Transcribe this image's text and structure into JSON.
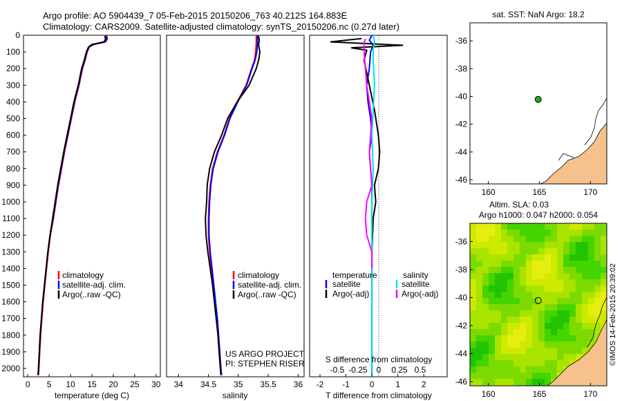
{
  "header": {
    "line1": "Argo profile: AO 5904439_7 05-Feb-2015 20150206_763 40.212S 164.883E",
    "line2": "Climatology: CARS2009. Satellite-adjusted climatology: synTS_20150206.nc (0.27d later)"
  },
  "colors": {
    "climatology": "#ff0000",
    "satellite_adj": "#0000ff",
    "argo": "#000000",
    "sal_satellite": "#00e5ee",
    "sal_argo": "#ff00ff",
    "land": "#f5c28e",
    "marker": "#22aa22"
  },
  "chart_data": [
    {
      "id": "temperature",
      "type": "line",
      "xlabel": "temperature (deg C)",
      "ylabel": "",
      "xlim": [
        -1,
        31
      ],
      "ylim": [
        2050,
        0
      ],
      "xticks": [
        0,
        5,
        10,
        15,
        20,
        25,
        30
      ],
      "yticks": [
        0,
        100,
        200,
        300,
        400,
        500,
        600,
        700,
        800,
        900,
        1000,
        1100,
        1200,
        1300,
        1400,
        1500,
        1600,
        1700,
        1800,
        1900,
        2000
      ],
      "legend": [
        "climatology",
        "satellite-adj. clim.",
        "Argo(..raw -QC)"
      ],
      "series": [
        {
          "name": "climatology",
          "color": "#ff0000",
          "points": [
            [
              18.4,
              0
            ],
            [
              18.6,
              20
            ],
            [
              18.2,
              40
            ],
            [
              15.5,
              55
            ],
            [
              14.4,
              70
            ],
            [
              13.9,
              100
            ],
            [
              13.4,
              150
            ],
            [
              12.8,
              200
            ],
            [
              12.0,
              300
            ],
            [
              11.0,
              400
            ],
            [
              10.2,
              500
            ],
            [
              9.4,
              600
            ],
            [
              8.6,
              700
            ],
            [
              7.9,
              800
            ],
            [
              7.2,
              900
            ],
            [
              6.6,
              1000
            ],
            [
              6.0,
              1100
            ],
            [
              5.3,
              1200
            ],
            [
              4.8,
              1300
            ],
            [
              4.4,
              1400
            ],
            [
              4.0,
              1500
            ],
            [
              3.6,
              1600
            ],
            [
              3.3,
              1700
            ],
            [
              3.0,
              1800
            ],
            [
              2.8,
              1900
            ],
            [
              2.6,
              2000
            ],
            [
              2.5,
              2040
            ]
          ]
        },
        {
          "name": "satellite-adj. clim.",
          "color": "#0000ff",
          "points": [
            [
              18.2,
              0
            ],
            [
              18.5,
              20
            ],
            [
              18.0,
              40
            ],
            [
              15.3,
              55
            ],
            [
              14.3,
              70
            ],
            [
              13.8,
              100
            ],
            [
              13.3,
              150
            ],
            [
              12.7,
              200
            ],
            [
              11.9,
              300
            ],
            [
              10.9,
              400
            ],
            [
              10.1,
              500
            ],
            [
              9.3,
              600
            ],
            [
              8.5,
              700
            ],
            [
              7.8,
              800
            ],
            [
              7.1,
              900
            ],
            [
              6.5,
              1000
            ],
            [
              5.9,
              1100
            ],
            [
              5.2,
              1200
            ],
            [
              4.7,
              1300
            ],
            [
              4.3,
              1400
            ],
            [
              3.9,
              1500
            ],
            [
              3.5,
              1600
            ],
            [
              3.2,
              1700
            ],
            [
              2.9,
              1800
            ],
            [
              2.7,
              1900
            ],
            [
              2.5,
              2000
            ],
            [
              2.4,
              2040
            ]
          ]
        },
        {
          "name": "Argo(..raw -QC)",
          "color": "#000000",
          "points": [
            [
              18.0,
              5
            ],
            [
              18.2,
              25
            ],
            [
              17.8,
              40
            ],
            [
              15.0,
              55
            ],
            [
              14.2,
              70
            ],
            [
              13.7,
              100
            ],
            [
              13.2,
              150
            ],
            [
              12.6,
              200
            ],
            [
              11.8,
              300
            ],
            [
              10.8,
              400
            ],
            [
              10.0,
              500
            ],
            [
              9.2,
              600
            ],
            [
              8.4,
              700
            ],
            [
              7.7,
              800
            ],
            [
              7.0,
              900
            ],
            [
              6.4,
              1000
            ],
            [
              5.8,
              1100
            ],
            [
              5.2,
              1200
            ],
            [
              4.7,
              1300
            ],
            [
              4.3,
              1400
            ],
            [
              3.9,
              1500
            ],
            [
              3.5,
              1600
            ],
            [
              3.2,
              1700
            ],
            [
              2.9,
              1800
            ],
            [
              2.7,
              1900
            ],
            [
              2.5,
              2000
            ],
            [
              2.4,
              2040
            ]
          ]
        }
      ]
    },
    {
      "id": "salinity",
      "type": "line",
      "xlabel": "salinity",
      "ylabel": "",
      "xlim": [
        33.8,
        36.1
      ],
      "ylim": [
        2050,
        0
      ],
      "xticks": [
        34,
        34.5,
        35,
        35.5,
        36
      ],
      "legend": [
        "climatology",
        "satellite-adj. clim.",
        "Argo(..raw -QC)"
      ],
      "annotation": [
        "US ARGO PROJECT",
        "PI: STEPHEN RISER"
      ],
      "series": [
        {
          "name": "climatology",
          "color": "#ff0000",
          "points": [
            [
              35.3,
              0
            ],
            [
              35.3,
              50
            ],
            [
              35.29,
              100
            ],
            [
              35.27,
              150
            ],
            [
              35.22,
              200
            ],
            [
              35.13,
              300
            ],
            [
              34.98,
              400
            ],
            [
              34.85,
              500
            ],
            [
              34.76,
              600
            ],
            [
              34.65,
              700
            ],
            [
              34.57,
              800
            ],
            [
              34.53,
              900
            ],
            [
              34.51,
              1000
            ],
            [
              34.5,
              1100
            ],
            [
              34.5,
              1200
            ],
            [
              34.52,
              1300
            ],
            [
              34.55,
              1400
            ],
            [
              34.58,
              1500
            ],
            [
              34.61,
              1600
            ],
            [
              34.64,
              1700
            ],
            [
              34.66,
              1800
            ],
            [
              34.68,
              1900
            ],
            [
              34.7,
              2000
            ],
            [
              34.71,
              2040
            ]
          ]
        },
        {
          "name": "satellite-adj. clim.",
          "color": "#0000ff",
          "points": [
            [
              35.32,
              0
            ],
            [
              35.32,
              50
            ],
            [
              35.31,
              100
            ],
            [
              35.28,
              150
            ],
            [
              35.23,
              200
            ],
            [
              35.14,
              300
            ],
            [
              34.99,
              400
            ],
            [
              34.86,
              500
            ],
            [
              34.77,
              600
            ],
            [
              34.66,
              700
            ],
            [
              34.58,
              800
            ],
            [
              34.54,
              900
            ],
            [
              34.52,
              1000
            ],
            [
              34.51,
              1100
            ],
            [
              34.51,
              1200
            ],
            [
              34.53,
              1300
            ],
            [
              34.56,
              1400
            ],
            [
              34.59,
              1500
            ],
            [
              34.62,
              1600
            ],
            [
              34.65,
              1700
            ],
            [
              34.67,
              1800
            ],
            [
              34.69,
              1900
            ],
            [
              34.71,
              2000
            ],
            [
              34.72,
              2040
            ]
          ]
        },
        {
          "name": "Argo(..raw -QC)",
          "color": "#000000",
          "points": [
            [
              35.34,
              5
            ],
            [
              35.35,
              30
            ],
            [
              35.34,
              60
            ],
            [
              35.36,
              100
            ],
            [
              35.34,
              150
            ],
            [
              35.3,
              200
            ],
            [
              35.18,
              300
            ],
            [
              34.98,
              400
            ],
            [
              34.82,
              500
            ],
            [
              34.72,
              600
            ],
            [
              34.6,
              700
            ],
            [
              34.52,
              800
            ],
            [
              34.48,
              900
            ],
            [
              34.47,
              1000
            ],
            [
              34.45,
              1100
            ],
            [
              34.46,
              1200
            ],
            [
              34.49,
              1300
            ],
            [
              34.53,
              1400
            ],
            [
              34.57,
              1500
            ],
            [
              34.6,
              1600
            ],
            [
              34.63,
              1700
            ],
            [
              34.66,
              1800
            ],
            [
              34.68,
              1900
            ],
            [
              34.7,
              2000
            ],
            [
              34.71,
              2040
            ]
          ]
        }
      ]
    },
    {
      "id": "difference",
      "type": "line",
      "xlabel": "T difference from climatology",
      "top_label": "S difference from climatology",
      "xlim": [
        -2.4,
        2.9
      ],
      "ylim": [
        2050,
        0
      ],
      "xticks_T": [
        -2,
        -1,
        0,
        1,
        2
      ],
      "xticks_S": [
        -0.5,
        -0.25,
        0,
        0.25,
        0.5
      ],
      "legend_temperature": [
        "temperature",
        "satellite",
        "Argo(-adj)"
      ],
      "legend_salinity": [
        "salinity",
        "satellite",
        "Argo(-adj)"
      ],
      "series": [
        {
          "name": "temperature satellite",
          "color": "#0000ff",
          "points": [
            [
              0,
              0
            ],
            [
              -0.1,
              30
            ],
            [
              0.05,
              60
            ],
            [
              -0.05,
              100
            ],
            [
              -0.1,
              200
            ],
            [
              -0.2,
              300
            ],
            [
              -0.15,
              400
            ],
            [
              -0.05,
              500
            ],
            [
              0,
              600
            ],
            [
              -0.1,
              700
            ],
            [
              -0.05,
              800
            ],
            [
              0,
              900
            ],
            [
              0,
              1000
            ],
            [
              0,
              1100
            ],
            [
              0,
              1200
            ],
            [
              0,
              1300
            ],
            [
              0,
              1400
            ],
            [
              0,
              2040
            ]
          ]
        },
        {
          "name": "temperature Argo(-adj)",
          "color": "#000000",
          "points": [
            [
              -0.4,
              20
            ],
            [
              -1.6,
              40
            ],
            [
              1.2,
              60
            ],
            [
              -0.8,
              75
            ],
            [
              -0.2,
              90
            ],
            [
              -0.3,
              150
            ],
            [
              -0.1,
              300
            ],
            [
              0.1,
              450
            ],
            [
              0.25,
              600
            ],
            [
              0.3,
              700
            ],
            [
              0.25,
              800
            ],
            [
              0.1,
              900
            ],
            [
              0.15,
              1000
            ],
            [
              0.05,
              1100
            ],
            [
              0,
              1300
            ],
            [
              0,
              1600
            ],
            [
              0,
              2040
            ]
          ]
        },
        {
          "name": "salinity satellite",
          "color": "#00e5ee",
          "points": [
            [
              0.05,
              0
            ],
            [
              0.1,
              40
            ],
            [
              0.05,
              80
            ],
            [
              0.05,
              150
            ],
            [
              0.1,
              300
            ],
            [
              0.05,
              450
            ],
            [
              0,
              600
            ],
            [
              0.05,
              800
            ],
            [
              0,
              1000
            ],
            [
              0,
              1400
            ],
            [
              0,
              2040
            ]
          ]
        },
        {
          "name": "salinity Argo(-adj)",
          "color": "#ff00ff",
          "points": [
            [
              -0.25,
              20
            ],
            [
              -0.3,
              50
            ],
            [
              -0.3,
              100
            ],
            [
              -0.25,
              200
            ],
            [
              -0.2,
              300
            ],
            [
              -0.1,
              400
            ],
            [
              0,
              500
            ],
            [
              -0.1,
              700
            ],
            [
              0,
              900
            ],
            [
              -0.2,
              1000
            ],
            [
              -0.25,
              1100
            ],
            [
              -0.2,
              1200
            ],
            [
              0,
              1300
            ],
            [
              0,
              1400
            ]
          ]
        }
      ]
    },
    {
      "id": "sst_map",
      "type": "scatter",
      "title": "sat. SST: NaN Argo: 18.2",
      "xlim": [
        158.2,
        171.6
      ],
      "ylim": [
        -46.3,
        -34.7
      ],
      "xticks": [
        160,
        165,
        170
      ],
      "yticks": [
        -36,
        -38,
        -40,
        -42,
        -44,
        -46
      ],
      "marker": [
        164.883,
        -40.212
      ]
    },
    {
      "id": "sla_map",
      "type": "heatmap",
      "title_line1": "Altim. SLA: 0.03",
      "title_line2": "Argo h1000: 0.047 h2000: 0.054",
      "xlim": [
        158.2,
        171.6
      ],
      "ylim": [
        -46.3,
        -34.7
      ],
      "xticks": [
        160,
        165,
        170
      ],
      "yticks": [
        -36,
        -38,
        -40,
        -42,
        -44,
        -46
      ],
      "marker": [
        164.883,
        -40.212
      ]
    }
  ],
  "credit": "©IMOS 14-Feb-2015 20:39:02"
}
